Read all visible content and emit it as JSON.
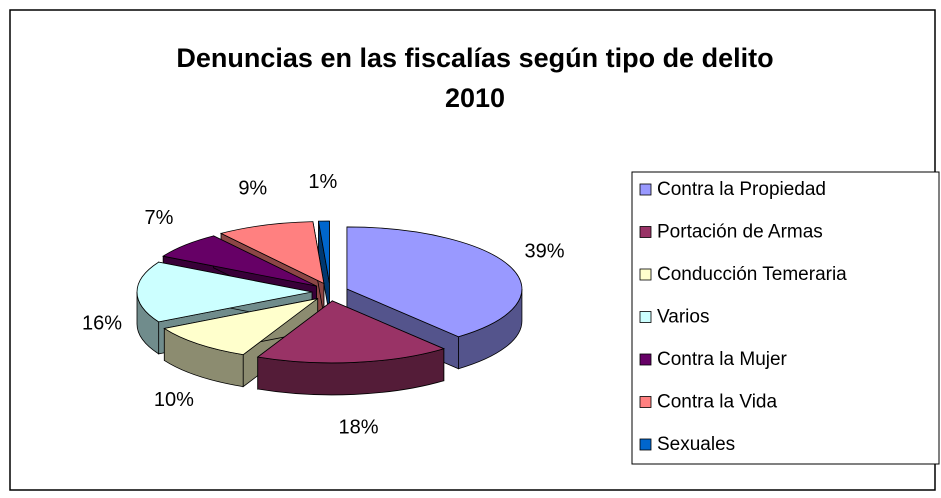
{
  "chart_data": {
    "type": "pie3d",
    "title": [
      "Denuncias en las fiscalías según tipo de delito",
      "2010"
    ],
    "categories": [
      "Contra la Propiedad",
      "Portación de Armas",
      "Conducción Temeraria",
      "Varios",
      "Contra la Mujer",
      "Contra la Vida",
      "Sexuales"
    ],
    "values": [
      39,
      18,
      10,
      16,
      7,
      9,
      1
    ],
    "value_labels": [
      "39%",
      "18%",
      "10%",
      "16%",
      "7%",
      "9%",
      "1%"
    ],
    "colors": [
      "#9999ff",
      "#993366",
      "#ffffcc",
      "#ccffff",
      "#660066",
      "#ff8080",
      "#0066cc"
    ],
    "legend": "right"
  }
}
